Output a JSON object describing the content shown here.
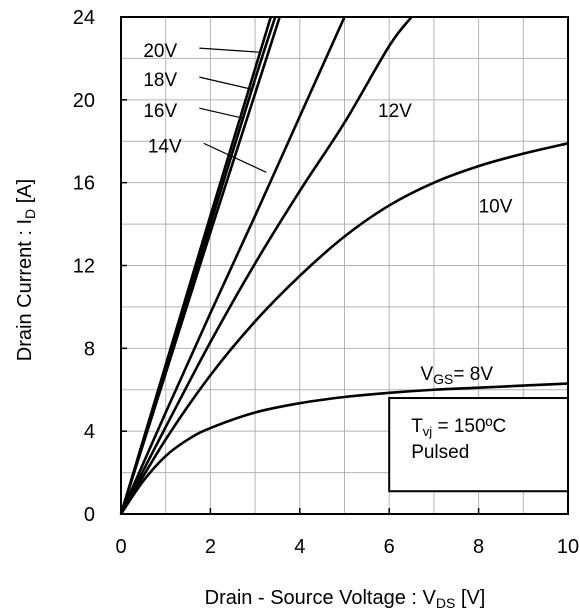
{
  "chart_data": {
    "type": "line",
    "xlabel": {
      "main": "Drain - Source Voltage : V",
      "sub": "DS",
      "unit": " [V]"
    },
    "ylabel": {
      "main": "Drain Current : I",
      "sub": "D",
      "unit": " [A]"
    },
    "xlim": [
      0,
      10
    ],
    "ylim": [
      0,
      24
    ],
    "x_ticks": [
      0,
      2,
      4,
      6,
      8,
      10
    ],
    "y_ticks": [
      0,
      4,
      8,
      12,
      16,
      20,
      24
    ],
    "x_tick_labels": [
      "0",
      "2",
      "4",
      "6",
      "8",
      "10"
    ],
    "y_tick_labels": [
      "0",
      "4",
      "8",
      "12",
      "16",
      "20",
      "24"
    ],
    "x_minor_step": 1,
    "y_minor_step": 2,
    "grid": true,
    "series": [
      {
        "name": "8V",
        "x": [
          0,
          0.5,
          1,
          1.5,
          2,
          3,
          4,
          5,
          6,
          7,
          8,
          9,
          10
        ],
        "y": [
          0,
          1.6,
          2.8,
          3.6,
          4.15,
          4.9,
          5.35,
          5.65,
          5.85,
          6.0,
          6.1,
          6.2,
          6.3
        ]
      },
      {
        "name": "10V",
        "x": [
          0,
          1,
          2,
          3,
          4,
          5,
          6,
          7,
          8,
          9,
          10
        ],
        "y": [
          0,
          3.6,
          6.7,
          9.3,
          11.5,
          13.4,
          14.9,
          16.0,
          16.8,
          17.4,
          17.9
        ]
      },
      {
        "name": "12V",
        "x": [
          0,
          1,
          2,
          3,
          4,
          5,
          6,
          6.5
        ],
        "y": [
          0,
          4.2,
          8.3,
          12.1,
          15.6,
          18.9,
          22.6,
          24
        ]
      },
      {
        "name": "14V",
        "x": [
          0,
          1,
          2,
          3,
          4,
          5
        ],
        "y": [
          0,
          4.9,
          9.7,
          14.4,
          19.2,
          24
        ]
      },
      {
        "name": "16V",
        "x": [
          0,
          1,
          2,
          3,
          3.55
        ],
        "y": [
          0,
          6.8,
          13.6,
          20.3,
          24
        ]
      },
      {
        "name": "18V",
        "x": [
          0,
          1,
          2,
          3,
          3.45
        ],
        "y": [
          0,
          7.0,
          14.0,
          21.0,
          24
        ]
      },
      {
        "name": "20V",
        "x": [
          0,
          1,
          2,
          3,
          3.35
        ],
        "y": [
          0,
          7.2,
          14.4,
          21.5,
          24
        ]
      }
    ],
    "curve_labels": [
      {
        "text": "20V",
        "x": 0.5,
        "y": 22.4,
        "leader_to": [
          3.1,
          22.3
        ]
      },
      {
        "text": "18V",
        "x": 0.5,
        "y": 21.0,
        "leader_to": [
          2.95,
          20.5
        ]
      },
      {
        "text": "16V",
        "x": 0.5,
        "y": 19.5,
        "leader_to": [
          2.75,
          19.1
        ]
      },
      {
        "text": "14V",
        "x": 0.6,
        "y": 17.8,
        "leader_to": [
          3.25,
          16.5
        ]
      },
      {
        "text": "12V",
        "x": 5.75,
        "y": 19.5
      },
      {
        "text": "10V",
        "x": 8.0,
        "y": 14.9
      },
      {
        "text": "V",
        "sub": "GS",
        "rest": "= 8V",
        "x": 6.7,
        "y": 6.8
      }
    ],
    "annotation": {
      "line1_main": "T",
      "line1_sub": "vj",
      "line1_rest": " = 150ºC",
      "line2": "Pulsed",
      "box": {
        "x0": 6.0,
        "x1": 10.0,
        "y0": 1.1,
        "y1": 5.6
      }
    }
  }
}
